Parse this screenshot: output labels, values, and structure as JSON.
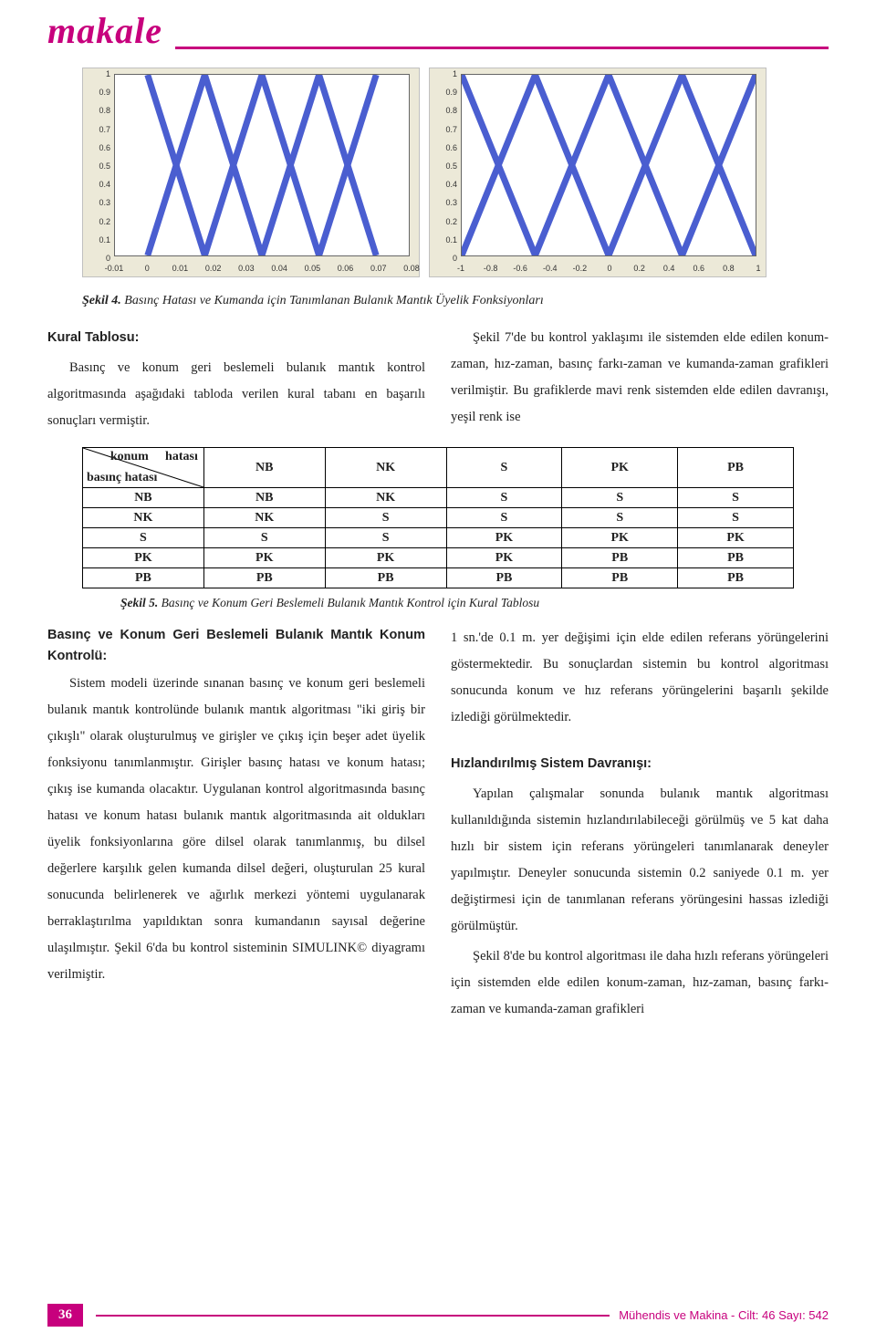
{
  "header": {
    "word": "makale"
  },
  "chart_left": {
    "type": "membership-functions",
    "background": "#ece9d8",
    "plot_bg": "#ffffff",
    "line_color": "#4a5ed0",
    "axis_color": "#666666",
    "xlim": [
      -0.01,
      0.08
    ],
    "ylim": [
      0,
      1
    ],
    "y_ticks": [
      "0",
      "0.1",
      "0.2",
      "0.3",
      "0.4",
      "0.5",
      "0.6",
      "0.7",
      "0.8",
      "0.9",
      "1"
    ],
    "x_ticks": [
      "-0.01",
      "0",
      "0.01",
      "0.02",
      "0.03",
      "0.04",
      "0.05",
      "0.06",
      "0.07",
      "0.08"
    ],
    "mf_peaks_x": [
      0.0,
      0.0175,
      0.035,
      0.0525,
      0.07
    ],
    "mf_half_width": 0.0175
  },
  "chart_right": {
    "type": "membership-functions",
    "background": "#ece9d8",
    "plot_bg": "#ffffff",
    "line_color": "#4a5ed0",
    "axis_color": "#666666",
    "xlim": [
      -1,
      1
    ],
    "ylim": [
      0,
      1
    ],
    "y_ticks": [
      "0",
      "0.1",
      "0.2",
      "0.3",
      "0.4",
      "0.5",
      "0.6",
      "0.7",
      "0.8",
      "0.9",
      "1"
    ],
    "x_ticks": [
      "-1",
      "-0.8",
      "-0.6",
      "-0.4",
      "-0.2",
      "0",
      "0.2",
      "0.4",
      "0.6",
      "0.8",
      "1"
    ],
    "mf_peaks_x": [
      -1.0,
      -0.5,
      0.0,
      0.5,
      1.0
    ],
    "mf_half_width": 0.5
  },
  "fig4": {
    "label": "Şekil 4.",
    "text": "Basınç Hatası ve Kumanda için Tanımlanan Bulanık Mantık Üyelik Fonksiyonları"
  },
  "intro_left": {
    "heading": "Kural Tablosu:",
    "para": "Basınç ve konum geri beslemeli bulanık mantık kontrol algoritmasında aşağıdaki tabloda verilen kural tabanı en başarılı sonuçları vermiştir."
  },
  "intro_right": {
    "para": "Şekil 7'de bu kontrol yaklaşımı ile sistemden elde edilen konum-zaman, hız-zaman, basınç farkı-zaman ve kumanda-zaman grafikleri verilmiştir. Bu grafiklerde mavi renk sistemden elde edilen davranışı, yeşil renk ise"
  },
  "table": {
    "diag_top": "konum",
    "diag_top2": "hatası",
    "diag_bottom": "basınç hatası",
    "col_headers": [
      "NB",
      "NK",
      "S",
      "PK",
      "PB"
    ],
    "row_headers": [
      "NB",
      "NK",
      "S",
      "PK",
      "PB"
    ],
    "rows": [
      [
        "NB",
        "NK",
        "S",
        "S",
        "S"
      ],
      [
        "NK",
        "S",
        "S",
        "S",
        "S"
      ],
      [
        "S",
        "S",
        "PK",
        "PK",
        "PK"
      ],
      [
        "PK",
        "PK",
        "PK",
        "PB",
        "PB"
      ],
      [
        "PB",
        "PB",
        "PB",
        "PB",
        "PB"
      ]
    ]
  },
  "fig5": {
    "label": "Şekil 5.",
    "text": "Basınç ve Konum Geri Beslemeli Bulanık Mantık Kontrol için Kural Tablosu"
  },
  "col_left": {
    "h1": "Basınç ve Konum Geri Beslemeli Bulanık Mantık Konum Kontrolü:",
    "p1": "Sistem modeli üzerinde sınanan basınç ve konum geri beslemeli bulanık mantık kontrolünde bulanık mantık algoritması \"iki giriş bir çıkışlı\" olarak oluşturulmuş ve girişler ve çıkış için beşer adet üyelik fonksiyonu tanımlanmıştır. Girişler basınç hatası ve konum hatası; çıkış ise kumanda olacaktır. Uygulanan kontrol algoritmasında basınç hatası ve konum hatası bulanık mantık algoritmasında ait oldukları üyelik fonksiyonlarına göre dilsel olarak tanımlanmış, bu dilsel değerlere karşılık gelen kumanda dilsel değeri, oluşturulan 25 kural sonucunda belirlenerek ve ağırlık merkezi yöntemi uygulanarak berraklaştırılma yapıldıktan sonra kumandanın sayısal değerine ulaşılmıştır. Şekil 6'da bu kontrol sisteminin SIMULINK© diyagramı verilmiştir."
  },
  "col_right": {
    "p1": "1 sn.'de 0.1 m. yer değişimi için elde edilen referans yörüngelerini göstermektedir. Bu sonuçlardan sistemin bu kontrol algoritması sonucunda konum ve hız referans yörüngelerini başarılı şekilde izlediği görülmektedir.",
    "h1": "Hızlandırılmış Sistem Davranışı:",
    "p2": "Yapılan çalışmalar sonunda bulanık mantık algoritması kullanıldığında sistemin hızlandırılabileceği görülmüş ve 5 kat daha hızlı bir sistem için referans yörüngeleri tanımlanarak deneyler yapılmıştır. Deneyler sonucunda sistemin 0.2 saniyede 0.1 m. yer değiştirmesi için de tanımlanan referans yörüngesini hassas izlediği görülmüştür.",
    "p3": "Şekil 8'de bu kontrol algoritması ile daha hızlı referans yörüngeleri için sistemden elde edilen konum-zaman, hız-zaman, basınç farkı-zaman ve kumanda-zaman grafikleri"
  },
  "footer": {
    "page": "36",
    "text": "Mühendis ve Makina - Cilt: 46 Sayı: 542"
  }
}
